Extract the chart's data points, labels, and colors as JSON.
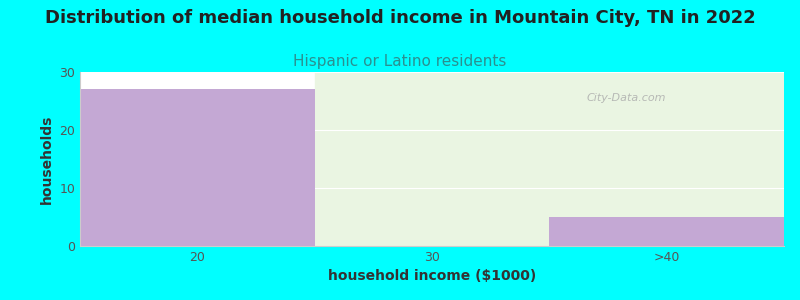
{
  "title": "Distribution of median household income in Mountain City, TN in 2022",
  "subtitle": "Hispanic or Latino residents",
  "xlabel": "household income ($1000)",
  "ylabel": "households",
  "background_color": "#00FFFF",
  "plot_bg_color": "#FFFFFF",
  "bar_color": "#C4A8D4",
  "greenish_bg_top": "#F0FAF0",
  "greenish_bg_bottom": "#E0F0D8",
  "categories": [
    "20",
    "30",
    ">40"
  ],
  "values": [
    27,
    0,
    5
  ],
  "ylim": [
    0,
    30
  ],
  "yticks": [
    0,
    10,
    20,
    30
  ],
  "title_fontsize": 13,
  "subtitle_fontsize": 11,
  "subtitle_color": "#2A9090",
  "axis_label_fontsize": 10,
  "tick_fontsize": 9,
  "watermark": "City-Data.com"
}
